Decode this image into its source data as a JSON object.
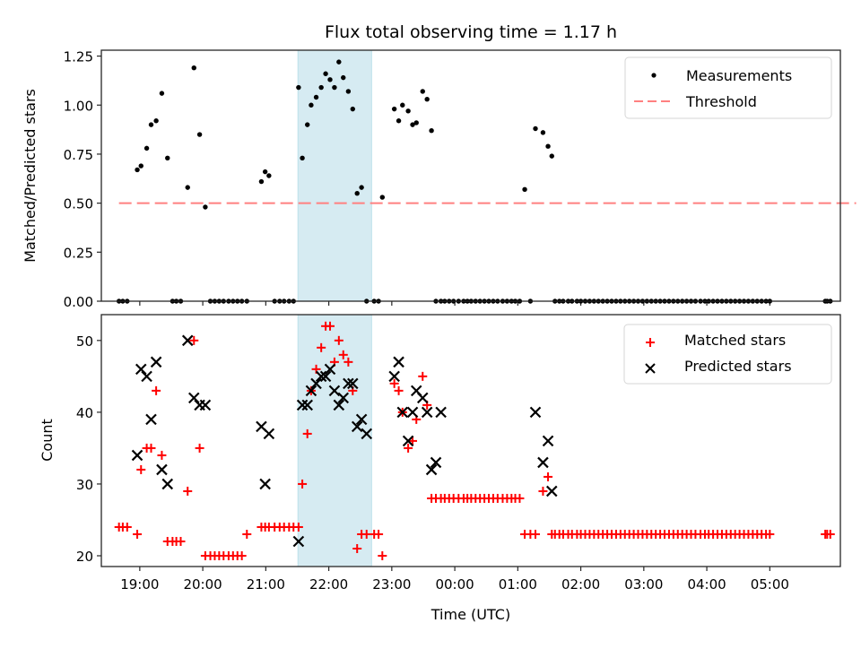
{
  "chart_data": [
    {
      "type": "scatter",
      "title": "Flux total observing time = 1.17 h",
      "xlabel": "",
      "ylabel": "Matched/Predicted stars",
      "ylim": [
        0,
        1.28
      ],
      "xlim_hours": [
        18.39,
        30.12
      ],
      "yticks": [
        0,
        0.25,
        0.5,
        0.75,
        1.0,
        1.25
      ],
      "ytick_labels": [
        "0.00",
        "0.25",
        "0.50",
        "0.75",
        "1.00",
        "1.25"
      ],
      "highlight_span_hours": [
        21.51,
        22.68
      ],
      "highlight_color": "#add8e6",
      "legend": {
        "placement": "upper-right",
        "entries": [
          "Measurements",
          "Threshold"
        ]
      },
      "threshold": {
        "name": "Threshold",
        "value": 0.5,
        "x_start_hours": 18.67,
        "x_end_hours": 30.37,
        "color": "#ff8080",
        "style": "dashed"
      },
      "series": [
        {
          "name": "Measurements",
          "color": "#000000",
          "marker": "dot",
          "x_hours": [
            18.67,
            18.73,
            18.8,
            18.96,
            19.02,
            19.11,
            19.18,
            19.26,
            19.35,
            19.44,
            19.52,
            19.58,
            19.65,
            19.76,
            19.86,
            19.95,
            20.04,
            20.12,
            20.19,
            20.26,
            20.33,
            20.41,
            20.48,
            20.55,
            20.62,
            20.7,
            20.93,
            20.99,
            21.05,
            21.14,
            21.22,
            21.29,
            21.37,
            21.44,
            21.52,
            21.58,
            21.66,
            21.72,
            21.8,
            21.88,
            21.95,
            22.02,
            22.09,
            22.16,
            22.23,
            22.31,
            22.38,
            22.45,
            22.52,
            22.6,
            22.72,
            22.79,
            22.85,
            23.04,
            23.11,
            23.17,
            23.26,
            23.33,
            23.39,
            23.49,
            23.56,
            23.63,
            23.7,
            23.78,
            23.84,
            23.91,
            23.98,
            24.06,
            24.14,
            24.2,
            24.26,
            24.33,
            24.4,
            24.47,
            24.54,
            24.61,
            24.68,
            24.76,
            24.83,
            24.9,
            24.96,
            25.03,
            25.11,
            25.2,
            25.28,
            25.4,
            25.48,
            25.54,
            25.59,
            25.66,
            25.72,
            25.8,
            25.86,
            25.94,
            26.0,
            26.07,
            26.14,
            26.21,
            26.28,
            26.35,
            26.42,
            26.49,
            26.56,
            26.63,
            26.7,
            26.77,
            26.84,
            26.91,
            26.98,
            27.05,
            27.12,
            27.19,
            27.26,
            27.33,
            27.4,
            27.47,
            27.54,
            27.61,
            27.68,
            27.75,
            27.82,
            27.9,
            27.97,
            28.03,
            28.1,
            28.17,
            28.24,
            28.31,
            28.38,
            28.45,
            28.52,
            28.59,
            28.66,
            28.73,
            28.8,
            28.87,
            28.94,
            29.0,
            29.88,
            29.91,
            29.96
          ],
          "y": [
            0,
            0,
            0,
            0.67,
            0.69,
            0.78,
            0.9,
            0.92,
            1.06,
            0.73,
            0,
            0,
            0,
            0.58,
            1.19,
            0.85,
            0.48,
            0,
            0,
            0,
            0,
            0,
            0,
            0,
            0,
            0,
            0.61,
            0.66,
            0.64,
            0,
            0,
            0,
            0,
            0,
            1.09,
            0.73,
            0.9,
            1.0,
            1.04,
            1.09,
            1.16,
            1.13,
            1.09,
            1.22,
            1.14,
            1.07,
            0.98,
            0.55,
            0.58,
            0,
            0,
            0,
            0.53,
            0.98,
            0.92,
            1.0,
            0.97,
            0.9,
            0.91,
            1.07,
            1.03,
            0.87,
            0,
            0,
            0,
            0,
            0,
            0,
            0,
            0,
            0,
            0,
            0,
            0,
            0,
            0,
            0,
            0,
            0,
            0,
            0,
            0,
            0.57,
            0,
            0.88,
            0.86,
            0.79,
            0.74,
            0,
            0,
            0,
            0,
            0,
            0,
            0,
            0,
            0,
            0,
            0,
            0,
            0,
            0,
            0,
            0,
            0,
            0,
            0,
            0,
            0,
            0,
            0,
            0,
            0,
            0,
            0,
            0,
            0,
            0,
            0,
            0,
            0,
            0,
            0,
            0,
            0,
            0,
            0,
            0,
            0,
            0,
            0,
            0,
            0,
            0,
            0,
            0,
            0,
            0,
            0,
            0,
            0
          ]
        }
      ]
    },
    {
      "type": "scatter",
      "title": "",
      "xlabel": "Time (UTC)",
      "ylabel": "Count",
      "ylim": [
        18.5,
        53.6
      ],
      "xlim_hours": [
        18.39,
        30.12
      ],
      "yticks": [
        20,
        30,
        40,
        50
      ],
      "ytick_labels": [
        "20",
        "30",
        "40",
        "50"
      ],
      "xticks_hours": [
        19,
        20,
        21,
        22,
        23,
        24,
        25,
        26,
        27,
        28,
        29
      ],
      "xtick_labels": [
        "19:00",
        "20:00",
        "21:00",
        "22:00",
        "23:00",
        "00:00",
        "01:00",
        "02:00",
        "03:00",
        "04:00",
        "05:00"
      ],
      "highlight_span_hours": [
        21.51,
        22.68
      ],
      "highlight_color": "#add8e6",
      "legend": {
        "placement": "upper-right",
        "entries": [
          "Matched stars",
          "Predicted stars"
        ]
      },
      "series": [
        {
          "name": "Matched stars",
          "color": "#ff0000",
          "marker": "plus",
          "x_hours": [
            18.67,
            18.73,
            18.8,
            18.96,
            19.02,
            19.11,
            19.18,
            19.26,
            19.35,
            19.44,
            19.52,
            19.58,
            19.65,
            19.76,
            19.86,
            19.95,
            20.04,
            20.12,
            20.19,
            20.26,
            20.33,
            20.41,
            20.48,
            20.55,
            20.62,
            20.7,
            20.93,
            20.99,
            21.05,
            21.14,
            21.22,
            21.29,
            21.37,
            21.44,
            21.52,
            21.58,
            21.66,
            21.72,
            21.8,
            21.88,
            21.95,
            22.02,
            22.09,
            22.16,
            22.23,
            22.31,
            22.38,
            22.45,
            22.52,
            22.6,
            22.72,
            22.79,
            22.85,
            23.04,
            23.11,
            23.17,
            23.26,
            23.33,
            23.39,
            23.49,
            23.56,
            23.63,
            23.7,
            23.78,
            23.84,
            23.91,
            23.98,
            24.06,
            24.14,
            24.2,
            24.26,
            24.33,
            24.4,
            24.47,
            24.54,
            24.61,
            24.68,
            24.76,
            24.83,
            24.9,
            24.96,
            25.03,
            25.11,
            25.2,
            25.28,
            25.4,
            25.48,
            25.54,
            25.59,
            25.66,
            25.72,
            25.8,
            25.86,
            25.94,
            26.0,
            26.07,
            26.14,
            26.21,
            26.28,
            26.35,
            26.42,
            26.49,
            26.56,
            26.63,
            26.7,
            26.77,
            26.84,
            26.91,
            26.98,
            27.05,
            27.12,
            27.19,
            27.26,
            27.33,
            27.4,
            27.47,
            27.54,
            27.61,
            27.68,
            27.75,
            27.82,
            27.9,
            27.97,
            28.03,
            28.1,
            28.17,
            28.24,
            28.31,
            28.38,
            28.45,
            28.52,
            28.59,
            28.66,
            28.73,
            28.8,
            28.87,
            28.94,
            29.0,
            29.88,
            29.91,
            29.96
          ],
          "y": [
            24,
            24,
            24,
            23,
            32,
            35,
            35,
            43,
            34,
            22,
            22,
            22,
            22,
            29,
            50,
            35,
            20,
            20,
            20,
            20,
            20,
            20,
            20,
            20,
            20,
            23,
            24,
            24,
            24,
            24,
            24,
            24,
            24,
            24,
            24,
            30,
            37,
            43,
            46,
            49,
            52,
            52,
            47,
            50,
            48,
            47,
            43,
            21,
            23,
            23,
            23,
            23,
            20,
            44,
            43,
            40,
            35,
            36,
            39,
            45,
            41,
            28,
            28,
            28,
            28,
            28,
            28,
            28,
            28,
            28,
            28,
            28,
            28,
            28,
            28,
            28,
            28,
            28,
            28,
            28,
            28,
            28,
            23,
            23,
            23,
            29,
            31,
            23,
            23,
            23,
            23,
            23,
            23,
            23,
            23,
            23,
            23,
            23,
            23,
            23,
            23,
            23,
            23,
            23,
            23,
            23,
            23,
            23,
            23,
            23,
            23,
            23,
            23,
            23,
            23,
            23,
            23,
            23,
            23,
            23,
            23,
            23,
            23,
            23,
            23,
            23,
            23,
            23,
            23,
            23,
            23,
            23,
            23,
            23,
            23,
            23,
            23,
            23,
            23,
            23,
            23,
            23,
            23
          ]
        },
        {
          "name": "Predicted stars",
          "color": "#000000",
          "marker": "x",
          "x_hours": [
            18.96,
            19.02,
            19.11,
            19.18,
            19.26,
            19.35,
            19.44,
            19.76,
            19.86,
            19.95,
            20.04,
            20.93,
            20.99,
            21.05,
            21.52,
            21.58,
            21.66,
            21.72,
            21.8,
            21.88,
            21.95,
            22.02,
            22.09,
            22.16,
            22.23,
            22.31,
            22.38,
            22.45,
            22.52,
            22.6,
            23.04,
            23.11,
            23.17,
            23.26,
            23.33,
            23.39,
            23.49,
            23.56,
            23.63,
            23.7,
            23.78,
            25.28,
            25.4,
            25.48,
            25.54
          ],
          "y": [
            34,
            46,
            45,
            39,
            47,
            32,
            30,
            50,
            42,
            41,
            41,
            38,
            30,
            37,
            22,
            41,
            41,
            43,
            44,
            45,
            45,
            46,
            43,
            41,
            42,
            44,
            44,
            38,
            39,
            37,
            45,
            47,
            40,
            36,
            40,
            43,
            42,
            40,
            32,
            33,
            40,
            40,
            33,
            36,
            29
          ]
        }
      ]
    }
  ],
  "legend_labels": {
    "measurements": "Measurements",
    "threshold": "Threshold",
    "matched": "Matched stars",
    "predicted": "Predicted stars"
  }
}
